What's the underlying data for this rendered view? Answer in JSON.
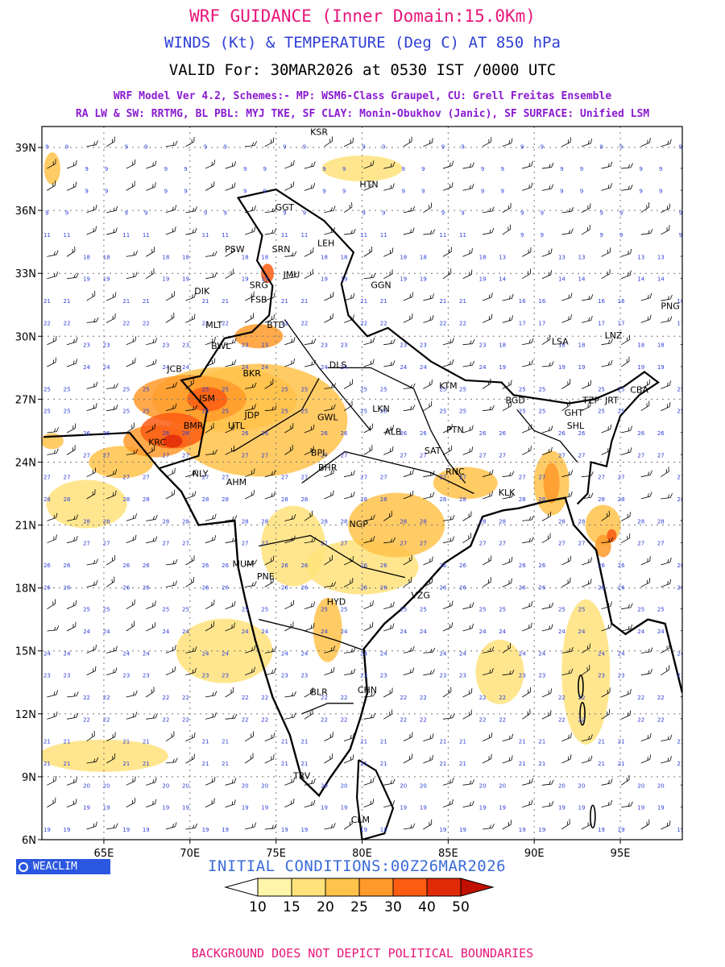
{
  "header": {
    "title": "WRF GUIDANCE (Inner Domain:15.0Km)",
    "subtitle": "WINDS (Kt) & TEMPERATURE (Deg C) AT 850 hPa",
    "valid": "VALID For: 30MAR2026 at 0530 IST /0000 UTC",
    "model_line1": "WRF Model Ver 4.2, Schemes:- MP: WSM6-Class Graupel, CU: Grell Freitas Ensemble",
    "model_line2": "RA LW & SW: RRTMG, BL PBL: MYJ TKE, SF CLAY: Monin-Obukhov (Janic), SF SURFACE: Unified LSM"
  },
  "map": {
    "lat_labels": [
      "39N",
      "36N",
      "33N",
      "30N",
      "27N",
      "24N",
      "21N",
      "18N",
      "15N",
      "12N",
      "9N",
      "6N"
    ],
    "lat_values": [
      39,
      36,
      33,
      30,
      27,
      24,
      21,
      18,
      15,
      12,
      9,
      6
    ],
    "lon_labels": [
      "65E",
      "70E",
      "75E",
      "80E",
      "85E",
      "90E",
      "95E"
    ],
    "lon_values": [
      65,
      70,
      75,
      80,
      85,
      90,
      95
    ],
    "lon_range": [
      61.4,
      98.6
    ],
    "lat_range": [
      6,
      40
    ],
    "stations": [
      {
        "name": "KSR",
        "lon": 77.5,
        "lat": 39.6
      },
      {
        "name": "HTN",
        "lon": 80.4,
        "lat": 37.1
      },
      {
        "name": "GGT",
        "lon": 75.5,
        "lat": 36.0
      },
      {
        "name": "PSW",
        "lon": 72.6,
        "lat": 34.0
      },
      {
        "name": "SRN",
        "lon": 75.3,
        "lat": 34.0
      },
      {
        "name": "LEH",
        "lon": 77.9,
        "lat": 34.3
      },
      {
        "name": "DIK",
        "lon": 70.7,
        "lat": 32.0
      },
      {
        "name": "SRG",
        "lon": 74.0,
        "lat": 32.3
      },
      {
        "name": "JMU",
        "lon": 75.9,
        "lat": 32.8
      },
      {
        "name": "GGN",
        "lon": 81.1,
        "lat": 32.3
      },
      {
        "name": "FSB",
        "lon": 74.0,
        "lat": 31.6
      },
      {
        "name": "MLT",
        "lon": 71.4,
        "lat": 30.4
      },
      {
        "name": "BTD",
        "lon": 75.0,
        "lat": 30.4
      },
      {
        "name": "DLS",
        "lon": 78.6,
        "lat": 28.5
      },
      {
        "name": "BWL",
        "lon": 71.8,
        "lat": 29.4
      },
      {
        "name": "JCB",
        "lon": 69.1,
        "lat": 28.3
      },
      {
        "name": "BKR",
        "lon": 73.6,
        "lat": 28.1
      },
      {
        "name": "KTM",
        "lon": 85.0,
        "lat": 27.5
      },
      {
        "name": "LSA",
        "lon": 91.5,
        "lat": 29.6
      },
      {
        "name": "LNZ",
        "lon": 94.6,
        "lat": 29.9
      },
      {
        "name": "PNG",
        "lon": 97.9,
        "lat": 31.3
      },
      {
        "name": "JSM",
        "lon": 71.0,
        "lat": 26.9
      },
      {
        "name": "JDP",
        "lon": 73.6,
        "lat": 26.1
      },
      {
        "name": "GWL",
        "lon": 78.0,
        "lat": 26.0
      },
      {
        "name": "LKN",
        "lon": 81.1,
        "lat": 26.4
      },
      {
        "name": "BGD",
        "lon": 88.9,
        "lat": 26.8
      },
      {
        "name": "GHT",
        "lon": 92.3,
        "lat": 26.2
      },
      {
        "name": "TZP",
        "lon": 93.3,
        "lat": 26.8
      },
      {
        "name": "JRT",
        "lon": 94.5,
        "lat": 26.8
      },
      {
        "name": "CBA",
        "lon": 96.1,
        "lat": 27.3
      },
      {
        "name": "SHL",
        "lon": 92.4,
        "lat": 25.6
      },
      {
        "name": "BMR",
        "lon": 70.2,
        "lat": 25.6
      },
      {
        "name": "UTL",
        "lon": 72.7,
        "lat": 25.6
      },
      {
        "name": "ALB",
        "lon": 81.8,
        "lat": 25.3
      },
      {
        "name": "PTN",
        "lon": 85.4,
        "lat": 25.4
      },
      {
        "name": "KRC",
        "lon": 68.1,
        "lat": 24.8
      },
      {
        "name": "BPL",
        "lon": 77.5,
        "lat": 24.3
      },
      {
        "name": "SAT",
        "lon": 84.1,
        "lat": 24.4
      },
      {
        "name": "BHR",
        "lon": 78.0,
        "lat": 23.6
      },
      {
        "name": "RNC",
        "lon": 85.4,
        "lat": 23.4
      },
      {
        "name": "NLY",
        "lon": 70.6,
        "lat": 23.3
      },
      {
        "name": "AHM",
        "lon": 72.7,
        "lat": 22.9
      },
      {
        "name": "KLK",
        "lon": 88.4,
        "lat": 22.4
      },
      {
        "name": "NGP",
        "lon": 79.8,
        "lat": 20.9
      },
      {
        "name": "MUM",
        "lon": 73.1,
        "lat": 19.0
      },
      {
        "name": "PNE",
        "lon": 74.4,
        "lat": 18.4
      },
      {
        "name": "HYD",
        "lon": 78.5,
        "lat": 17.2
      },
      {
        "name": "VZG",
        "lon": 83.4,
        "lat": 17.5
      },
      {
        "name": "CHN",
        "lon": 80.3,
        "lat": 13.0
      },
      {
        "name": "BLR",
        "lon": 77.5,
        "lat": 12.9
      },
      {
        "name": "TRV",
        "lon": 76.5,
        "lat": 8.9
      },
      {
        "name": "CLM",
        "lon": 79.9,
        "lat": 6.8
      }
    ]
  },
  "legend": {
    "levels": [
      "10",
      "15",
      "20",
      "25",
      "30",
      "40",
      "50"
    ],
    "colors": [
      "#ffffff",
      "#fff5a8",
      "#ffe27a",
      "#ffc24a",
      "#ff9a2a",
      "#fb5c12",
      "#e02a08",
      "#c01000"
    ]
  },
  "footer": {
    "logo_text": "WEACLIM",
    "initial_conditions": "INITIAL CONDITIONS:00Z26MAR2026",
    "disclaimer": "BACKGROUND DOES NOT DEPICT POLITICAL BOUNDARIES"
  }
}
